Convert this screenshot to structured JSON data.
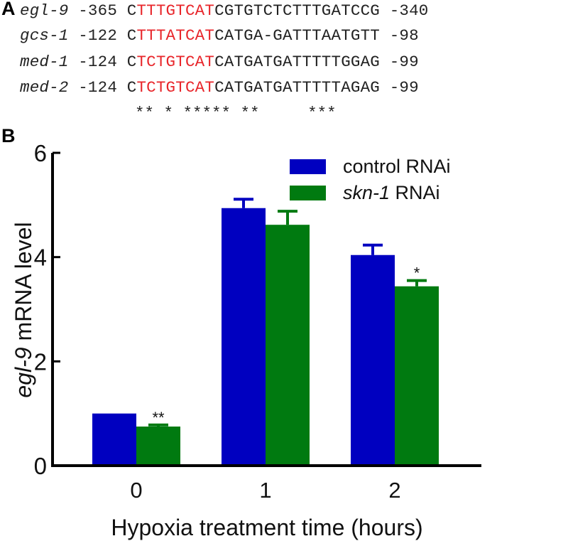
{
  "panel_a": {
    "label": "A",
    "rows": [
      {
        "gene": "egl-9",
        "start": "-365",
        "prefix": "C",
        "motif": "TTTGTCAT",
        "suffix": "CGTGTCTCTTTGATCCG",
        "end": "-340"
      },
      {
        "gene": "gcs-1",
        "start": "-122",
        "prefix": "C",
        "motif": "TTTATCAT",
        "suffix": "CATGA-GATTTAATGTT",
        "end": "-98"
      },
      {
        "gene": "med-1",
        "start": "-124",
        "prefix": "C",
        "motif": "TCTGTCAT",
        "suffix": "CATGATGATTTTTGGAG",
        "end": "-99"
      },
      {
        "gene": "med-2",
        "start": "-124",
        "prefix": "C",
        "motif": "TCTGTCAT",
        "suffix": "CATGATGATTTTTAGAG",
        "end": "-99"
      }
    ],
    "conservation": "** * ***** **     ***",
    "motif_color": "#e8262b"
  },
  "panel_b": {
    "label": "B",
    "colors": {
      "control": "#0000c0",
      "skn1": "#007a10",
      "axis": "#000000"
    }
  },
  "chart_data": {
    "type": "bar",
    "title": "",
    "xlabel": "Hypoxia treatment time (hours)",
    "ylabel_italic": "egl-9",
    "ylabel_rest": " mRNA level",
    "ylabel": "egl-9 mRNA level",
    "categories": [
      "0",
      "1",
      "2"
    ],
    "ylim": [
      0,
      6
    ],
    "yticks": [
      "0",
      "2",
      "4",
      "6"
    ],
    "grid": false,
    "legend_position": "top-right",
    "series": [
      {
        "name": "control RNAi",
        "name_italic": "",
        "name_rest": "control RNAi",
        "color": "#0000c0",
        "values": [
          1.0,
          4.94,
          4.04
        ],
        "error": [
          0,
          0.17,
          0.19
        ],
        "significance": [
          "",
          "",
          ""
        ]
      },
      {
        "name": "skn-1 RNAi",
        "name_italic": "skn-1",
        "name_rest": " RNAi",
        "color": "#007a10",
        "values": [
          0.75,
          4.62,
          3.44
        ],
        "error": [
          0.03,
          0.26,
          0.11
        ],
        "significance": [
          "**",
          "",
          "*"
        ]
      }
    ]
  }
}
